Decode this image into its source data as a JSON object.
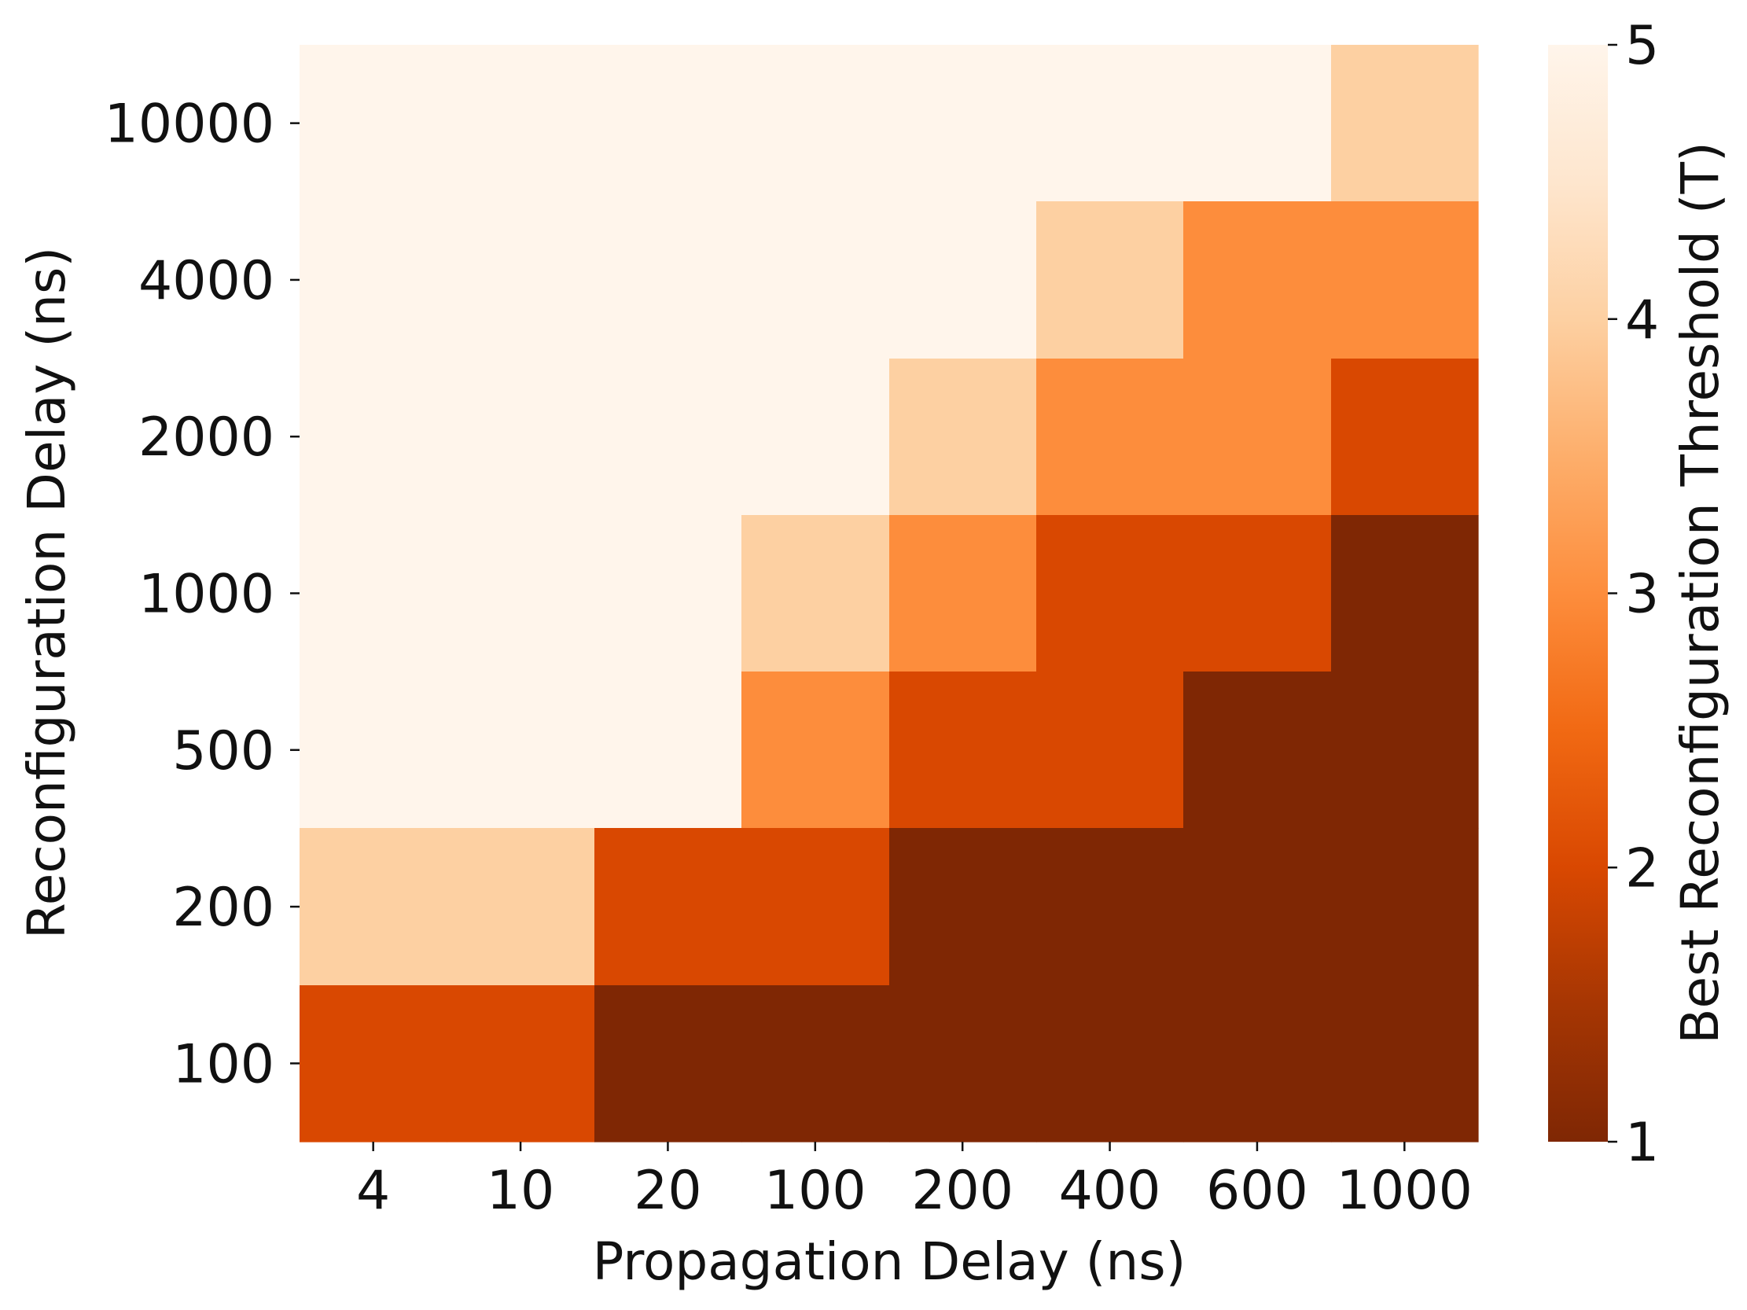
{
  "chart_data": {
    "type": "heatmap",
    "title": "",
    "xlabel": "Propagation Delay (ns)",
    "ylabel": "Reconfiguration Delay (ns)",
    "x_categories": [
      "4",
      "10",
      "20",
      "100",
      "200",
      "400",
      "600",
      "1000"
    ],
    "y_categories": [
      "10000",
      "4000",
      "2000",
      "1000",
      "500",
      "200",
      "100"
    ],
    "values": [
      [
        5,
        5,
        5,
        5,
        5,
        5,
        5,
        4
      ],
      [
        5,
        5,
        5,
        5,
        5,
        4,
        3,
        3
      ],
      [
        5,
        5,
        5,
        5,
        4,
        3,
        3,
        2
      ],
      [
        5,
        5,
        5,
        4,
        3,
        2,
        2,
        1
      ],
      [
        5,
        5,
        5,
        3,
        2,
        2,
        1,
        1
      ],
      [
        4,
        4,
        2,
        2,
        1,
        1,
        1,
        1
      ],
      [
        2,
        2,
        1,
        1,
        1,
        1,
        1,
        1
      ]
    ],
    "colorbar": {
      "label": "Best Reconfiguration Threshold (T)",
      "min": 1,
      "max": 5,
      "ticks": [
        "1",
        "2",
        "3",
        "4",
        "5"
      ],
      "colormap": "Oranges_r"
    },
    "value_colors": {
      "1": "#7f2704",
      "2": "#d94801",
      "3": "#fd8d3c",
      "4": "#fdd0a2",
      "5": "#fff5eb"
    },
    "grid": false
  }
}
